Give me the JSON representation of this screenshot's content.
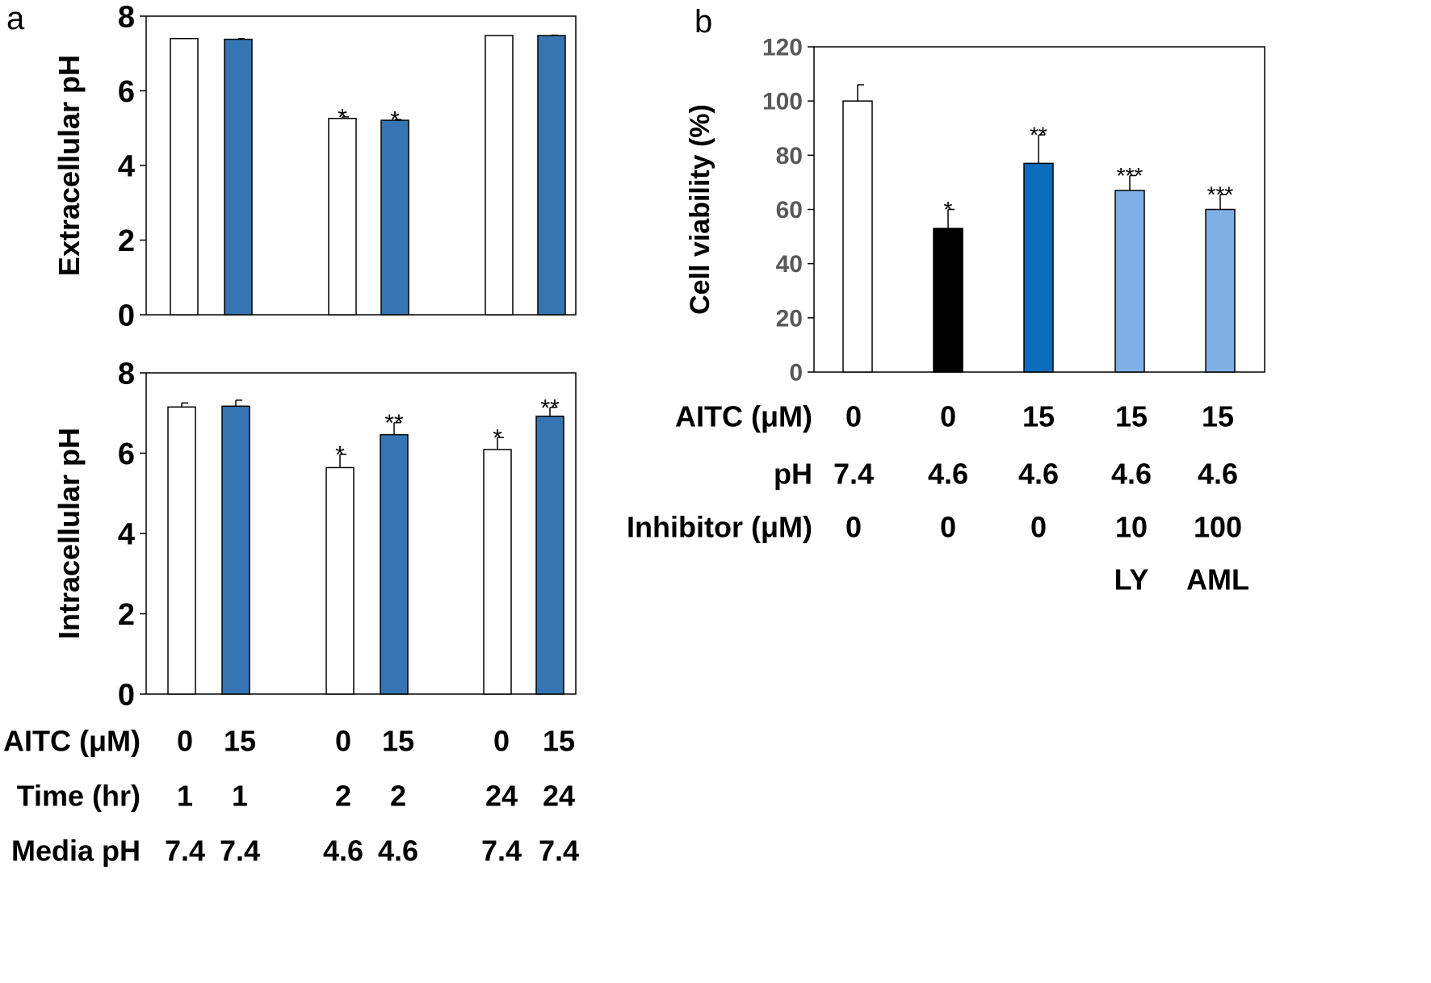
{
  "panel_labels": {
    "a": "a",
    "b": "b"
  },
  "colors": {
    "white_bar": "#ffffff",
    "blue_bar": "#3675b1",
    "black_bar": "#000000",
    "dark_blue_bar": "#0b6cbc",
    "light_blue_bar": "#7fb0e5",
    "b_tick_color": "#595959"
  },
  "chart_data": [
    {
      "type": "bar",
      "panel": "a-top",
      "ylabel": "Extracellular pH",
      "ylim": [
        0,
        8
      ],
      "yticks": [
        0,
        2,
        4,
        6,
        8
      ],
      "bars": [
        {
          "value": 7.4,
          "error": 0,
          "fill": "white",
          "sig": ""
        },
        {
          "value": 7.38,
          "error": 0.02,
          "fill": "blue",
          "sig": ""
        },
        {
          "value": 5.26,
          "error": 0.04,
          "fill": "white",
          "sig": "*"
        },
        {
          "value": 5.21,
          "error": 0.02,
          "fill": "blue",
          "sig": "*"
        },
        {
          "value": 7.48,
          "error": 0,
          "fill": "white",
          "sig": ""
        },
        {
          "value": 7.48,
          "error": 0.01,
          "fill": "blue",
          "sig": ""
        }
      ]
    },
    {
      "type": "bar",
      "panel": "a-bottom",
      "ylabel": "Intracellular pH",
      "ylim": [
        0,
        8
      ],
      "yticks": [
        0,
        2,
        4,
        6,
        8
      ],
      "bars": [
        {
          "value": 7.15,
          "error": 0.1,
          "fill": "white",
          "sig": ""
        },
        {
          "value": 7.17,
          "error": 0.15,
          "fill": "blue",
          "sig": ""
        },
        {
          "value": 5.64,
          "error": 0.33,
          "fill": "white",
          "sig": "*"
        },
        {
          "value": 6.46,
          "error": 0.3,
          "fill": "blue",
          "sig": "**"
        },
        {
          "value": 6.09,
          "error": 0.3,
          "fill": "white",
          "sig": "*"
        },
        {
          "value": 6.92,
          "error": 0.22,
          "fill": "blue",
          "sig": "**"
        }
      ],
      "conditions": [
        {
          "label": "AITC (μM)",
          "values": [
            "0",
            "15",
            "0",
            "15",
            "0",
            "15"
          ]
        },
        {
          "label": "Time (hr)",
          "values": [
            "1",
            "1",
            "2",
            "2",
            "24",
            "24"
          ]
        },
        {
          "label": "Media pH",
          "values": [
            "7.4",
            "7.4",
            "4.6",
            "4.6",
            "7.4",
            "7.4"
          ]
        }
      ]
    },
    {
      "type": "bar",
      "panel": "b",
      "ylabel": "Cell viability (%)",
      "ylim": [
        0,
        120
      ],
      "yticks": [
        0,
        20,
        40,
        60,
        80,
        100,
        120
      ],
      "bars": [
        {
          "value": 100,
          "error": 6,
          "fill": "white",
          "sig": ""
        },
        {
          "value": 53,
          "error": 7,
          "fill": "black",
          "sig": "*"
        },
        {
          "value": 77,
          "error": 10.5,
          "fill": "dark_blue",
          "sig": "**"
        },
        {
          "value": 67,
          "error": 5.5,
          "fill": "light_blue",
          "sig": "***"
        },
        {
          "value": 60,
          "error": 5.5,
          "fill": "light_blue",
          "sig": "***"
        }
      ],
      "conditions": [
        {
          "label": "AITC (μM)",
          "values": [
            "0",
            "0",
            "15",
            "15",
            "15"
          ]
        },
        {
          "label": "pH",
          "values": [
            "7.4",
            "4.6",
            "4.6",
            "4.6",
            "4.6"
          ]
        },
        {
          "label": "Inhibitor (μM)",
          "values": [
            "0",
            "0",
            "0",
            "10",
            "100"
          ]
        },
        {
          "label": "",
          "values": [
            "",
            "",
            "",
            "LY",
            "AML"
          ]
        }
      ]
    }
  ]
}
